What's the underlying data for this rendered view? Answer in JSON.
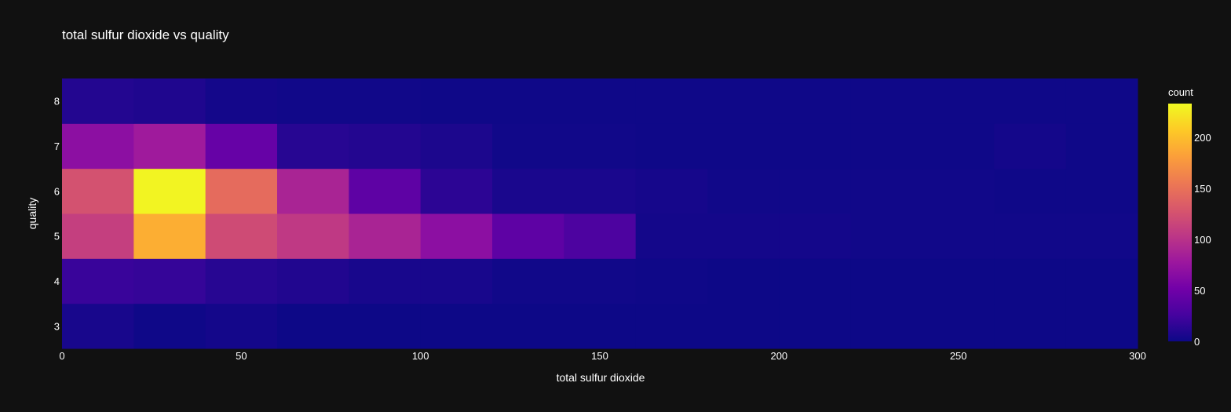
{
  "chart_data": {
    "type": "heatmap",
    "title": "total sulfur dioxide vs quality",
    "xlabel": "total sulfur dioxide",
    "ylabel": "quality",
    "xlim": [
      0,
      300
    ],
    "x_bin_edges": [
      0,
      20,
      40,
      60,
      80,
      100,
      120,
      140,
      160,
      180,
      200,
      220,
      240,
      260,
      280,
      300
    ],
    "y_categories": [
      3,
      4,
      5,
      6,
      7,
      8
    ],
    "x_ticks": [
      "0",
      "50",
      "100",
      "150",
      "200",
      "250",
      "300"
    ],
    "y_ticks": [
      "3",
      "4",
      "5",
      "6",
      "7",
      "8"
    ],
    "counts": {
      "3": [
        5,
        1,
        3,
        0,
        0,
        0,
        0,
        0,
        0,
        0,
        0,
        0,
        0,
        0,
        0
      ],
      "4": [
        20,
        18,
        12,
        9,
        5,
        5,
        2,
        2,
        1,
        0,
        0,
        0,
        0,
        0,
        0
      ],
      "5": [
        110,
        190,
        120,
        105,
        88,
        68,
        40,
        30,
        3,
        3,
        3,
        2,
        2,
        2,
        2
      ],
      "6": [
        125,
        230,
        145,
        88,
        40,
        14,
        6,
        6,
        4,
        2,
        2,
        2,
        2,
        1,
        1
      ],
      "7": [
        68,
        80,
        45,
        12,
        10,
        7,
        2,
        2,
        1,
        1,
        1,
        1,
        1,
        3,
        1
      ],
      "8": [
        10,
        8,
        3,
        2,
        2,
        1,
        1,
        1,
        1,
        1,
        1,
        1,
        1,
        1,
        1
      ]
    },
    "colorscale": "plasma",
    "colorbar": {
      "title": "count",
      "min": 0,
      "max": 233,
      "ticks": [
        "0",
        "50",
        "100",
        "150",
        "200"
      ]
    }
  }
}
